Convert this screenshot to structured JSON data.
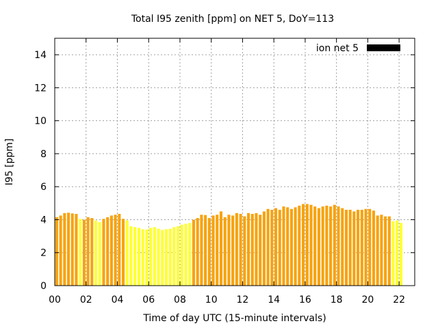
{
  "chart_data": {
    "type": "bar",
    "title": "Total I95 zenith [ppm] on NET 5, DoY=113",
    "xlabel": "Time of day UTC (15-minute intervals)",
    "ylabel": "I95 [ppm]",
    "xlim": [
      0,
      23
    ],
    "ylim": [
      0,
      15
    ],
    "x_ticks": [
      "00",
      "02",
      "04",
      "06",
      "08",
      "10",
      "12",
      "14",
      "16",
      "18",
      "20",
      "22"
    ],
    "y_ticks": [
      "0",
      "2",
      "4",
      "6",
      "8",
      "10",
      "12",
      "14"
    ],
    "grid": true,
    "legend": {
      "position": "top-right",
      "entries": [
        "ion net 5"
      ]
    },
    "bar_interval_hours": 0.25,
    "series": [
      {
        "name": "ion net 5",
        "values": [
          4.15,
          4.25,
          4.4,
          4.42,
          4.38,
          4.35,
          4.05,
          4.0,
          4.15,
          4.1,
          3.95,
          3.85,
          4.05,
          4.15,
          4.25,
          4.3,
          4.35,
          4.05,
          3.95,
          3.6,
          3.55,
          3.5,
          3.42,
          3.4,
          3.5,
          3.55,
          3.45,
          3.38,
          3.42,
          3.45,
          3.55,
          3.6,
          3.7,
          3.75,
          3.8,
          4.0,
          4.1,
          4.3,
          4.28,
          4.1,
          4.25,
          4.3,
          4.5,
          4.15,
          4.3,
          4.25,
          4.4,
          4.35,
          4.2,
          4.4,
          4.35,
          4.4,
          4.3,
          4.5,
          4.65,
          4.6,
          4.7,
          4.6,
          4.8,
          4.75,
          4.65,
          4.75,
          4.85,
          4.95,
          4.95,
          4.9,
          4.8,
          4.7,
          4.8,
          4.85,
          4.8,
          4.9,
          4.8,
          4.7,
          4.6,
          4.6,
          4.5,
          4.6,
          4.6,
          4.65,
          4.65,
          4.55,
          4.25,
          4.3,
          4.2,
          4.2,
          3.9,
          3.95,
          3.8
        ],
        "bar_colors": [
          "#f7a30f",
          "#f7a30f",
          "#f7a30f",
          "#f7a30f",
          "#f7a30f",
          "#f7a30f",
          "#ffff33",
          "#f7a30f",
          "#f7a30f",
          "#f7a30f",
          "#ffff33",
          "#ffff33",
          "#f7a30f",
          "#f7a30f",
          "#f7a30f",
          "#f7a30f",
          "#f7a30f",
          "#f7a30f",
          "#ffff33",
          "#ffff33",
          "#ffff33",
          "#ffff33",
          "#ffff33",
          "#ffff33",
          "#ffff33",
          "#ffff33",
          "#ffff33",
          "#ffff33",
          "#ffff33",
          "#ffff33",
          "#ffff33",
          "#ffff33",
          "#ffff33",
          "#ffff33",
          "#ffff33",
          "#f7a30f",
          "#f7a30f",
          "#f7a30f",
          "#f7a30f",
          "#f7a30f",
          "#f7a30f",
          "#f7a30f",
          "#f7a30f",
          "#f7a30f",
          "#f7a30f",
          "#f7a30f",
          "#f7a30f",
          "#f7a30f",
          "#f7a30f",
          "#f7a30f",
          "#f7a30f",
          "#f7a30f",
          "#f7a30f",
          "#f7a30f",
          "#f7a30f",
          "#f7a30f",
          "#f7a30f",
          "#f7a30f",
          "#f7a30f",
          "#f7a30f",
          "#f7a30f",
          "#f7a30f",
          "#f7a30f",
          "#f7a30f",
          "#f7a30f",
          "#f7a30f",
          "#f7a30f",
          "#f7a30f",
          "#f7a30f",
          "#f7a30f",
          "#f7a30f",
          "#f7a30f",
          "#f7a30f",
          "#f7a30f",
          "#f7a30f",
          "#f7a30f",
          "#f7a30f",
          "#f7a30f",
          "#f7a30f",
          "#f7a30f",
          "#f7a30f",
          "#f7a30f",
          "#f7a30f",
          "#f7a30f",
          "#f7a30f",
          "#f7a30f",
          "#ffff33",
          "#ffff33",
          "#ffff33"
        ]
      }
    ],
    "legend_color": "#000000",
    "grid_color": "#a0a0a0"
  }
}
